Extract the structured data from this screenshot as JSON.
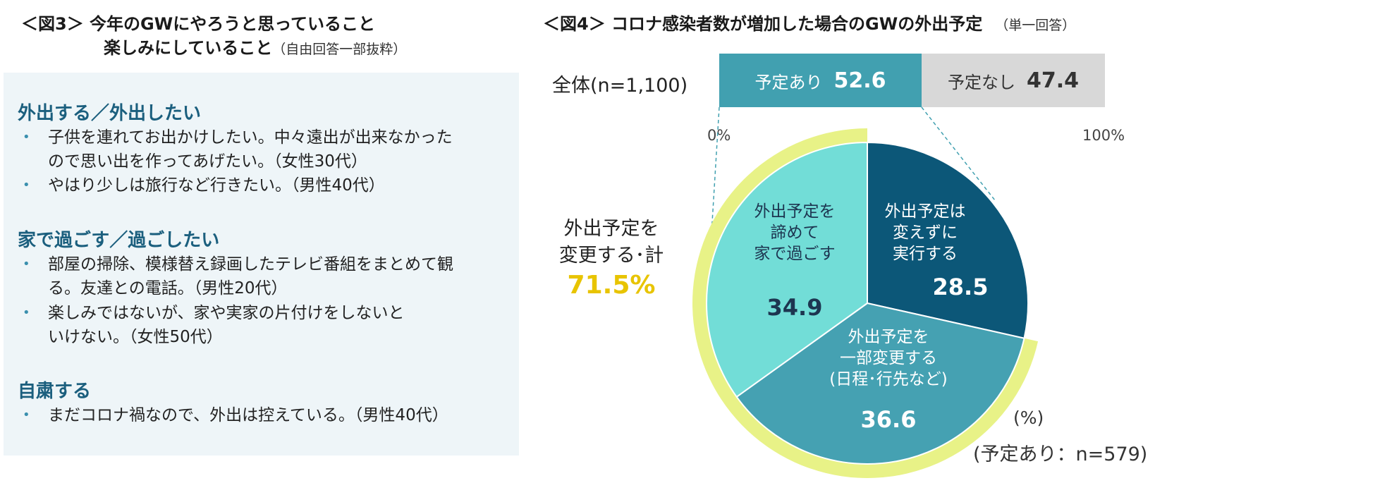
{
  "fig3": {
    "title_line1": "＜図3＞ 今年のGWにやろうと思っていること",
    "title_line2": "楽しみにしていること",
    "title_note": "（自由回答一部抜粋）",
    "sections": [
      {
        "heading": "外出する／外出したい",
        "items": [
          [
            "子供を連れてお出かけしたい。中々遠出が出来なかった",
            "ので思い出を作ってあげたい。（女性30代）"
          ],
          [
            "やはり少しは旅行など行きたい。（男性40代）"
          ]
        ]
      },
      {
        "heading": "家で過ごす／過ごしたい",
        "items": [
          [
            "部屋の掃除、模様替え録画したテレビ番組をまとめて観",
            "る。友達との電話。（男性20代）"
          ],
          [
            "楽しみではないが、家や実家の片付けをしないと",
            "いけない。（女性50代）"
          ]
        ]
      },
      {
        "heading": "自粛する",
        "items": [
          [
            "まだコロナ禍なので、外出は控えている。（男性40代）"
          ]
        ]
      }
    ],
    "bullet": "•"
  },
  "fig4": {
    "title": "＜図4＞ コロナ感染者数が増加した場合のGWの外出予定",
    "title_note": "（単一回答）",
    "bar_row_label": "全体(n=1,100)",
    "bar_planned_label": "予定あり",
    "bar_planned_value": "52.6",
    "bar_unplanned_label": "予定なし",
    "bar_unplanned_value": "47.4",
    "axis_min_label": "0%",
    "axis_max_label": "100%",
    "total_label_line1": "外出予定を",
    "total_label_line2": "変更する･計",
    "total_value": "71.5%",
    "unit_label": "(%)",
    "pie_n_label": "(予定あり：n=579)",
    "colors": {
      "bar_planned": "#41a0b0",
      "bar_unplanned": "#d8d8d8",
      "slice_unchanged": "#0c5778",
      "slice_partial": "#45a1b2",
      "slice_give_up": "#72ddd7",
      "highlight_arc": "#e8f287",
      "total_value": "#e8c400"
    }
  },
  "chart_data": [
    {
      "type": "bar",
      "orientation": "horizontal-stacked",
      "categories": [
        "全体(n=1,100)"
      ],
      "series": [
        {
          "name": "予定あり",
          "values": [
            52.6
          ]
        },
        {
          "name": "予定なし",
          "values": [
            47.4
          ]
        }
      ],
      "xlim": [
        0,
        100
      ]
    },
    {
      "type": "pie",
      "labels": [
        "外出予定は変えずに実行する",
        "外出予定を一部変更する(日程･行先など)",
        "外出予定を諦めて家で過ごす"
      ],
      "values": [
        28.5,
        36.6,
        34.9
      ],
      "total_changed": 71.5,
      "n_label": "(予定あり：n=579)"
    }
  ]
}
